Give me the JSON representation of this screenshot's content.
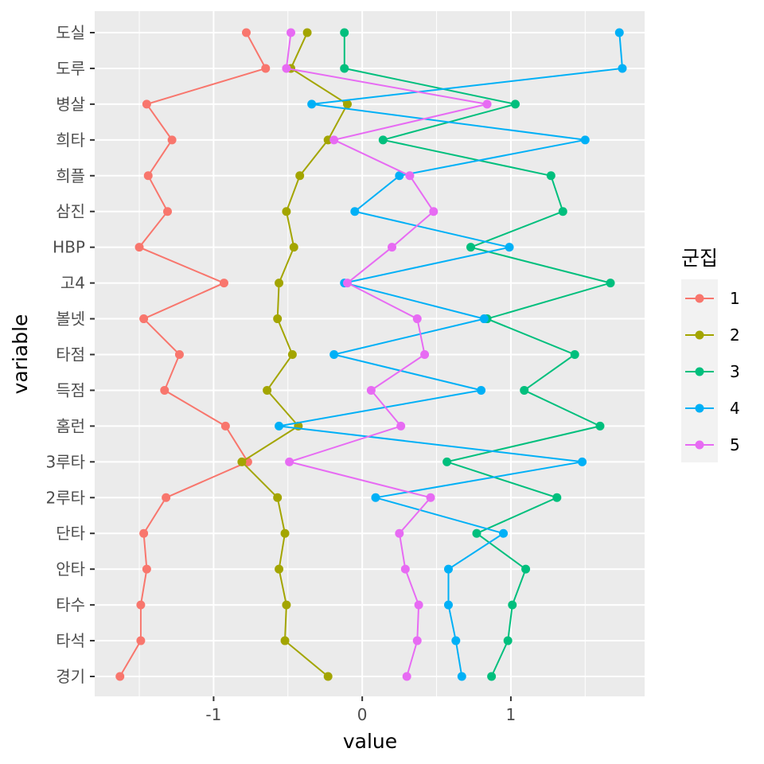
{
  "chart_data": {
    "type": "line",
    "xlabel": "value",
    "ylabel": "variable",
    "xlim": [
      -1.8,
      1.9
    ],
    "x_ticks": [
      -1,
      0,
      1
    ],
    "x_tick_labels": [
      "-1",
      "0",
      "1"
    ],
    "grid": true,
    "legend_position": "right",
    "legend_title": "군집",
    "categories": [
      "경기",
      "타석",
      "타수",
      "안타",
      "단타",
      "2루타",
      "3루타",
      "홈런",
      "득점",
      "타점",
      "볼넷",
      "고4",
      "HBP",
      "삼진",
      "희플",
      "희타",
      "병살",
      "도루",
      "도실"
    ],
    "series": [
      {
        "name": "1",
        "color": "#F8766D",
        "values": [
          -1.63,
          -1.49,
          -1.49,
          -1.45,
          -1.47,
          -1.32,
          -0.77,
          -0.92,
          -1.33,
          -1.23,
          -1.47,
          -0.93,
          -1.5,
          -1.31,
          -1.44,
          -1.28,
          -1.45,
          -0.65,
          -0.78
        ]
      },
      {
        "name": "2",
        "color": "#A3A500",
        "values": [
          -0.23,
          -0.52,
          -0.51,
          -0.56,
          -0.52,
          -0.57,
          -0.81,
          -0.43,
          -0.64,
          -0.47,
          -0.57,
          -0.56,
          -0.46,
          -0.51,
          -0.42,
          -0.23,
          -0.1,
          -0.48,
          -0.37
        ]
      },
      {
        "name": "3",
        "color": "#00BF7D",
        "values": [
          0.87,
          0.98,
          1.01,
          1.1,
          0.77,
          1.31,
          0.57,
          1.6,
          1.09,
          1.43,
          0.84,
          1.67,
          0.73,
          1.35,
          1.27,
          0.14,
          1.03,
          -0.12,
          -0.12
        ]
      },
      {
        "name": "4",
        "color": "#00B0F6",
        "values": [
          0.67,
          0.63,
          0.58,
          0.58,
          0.95,
          0.09,
          1.48,
          -0.56,
          0.8,
          -0.19,
          0.82,
          -0.12,
          0.99,
          -0.05,
          0.25,
          1.5,
          -0.34,
          1.75,
          1.73
        ]
      },
      {
        "name": "5",
        "color": "#E76BF3",
        "values": [
          0.3,
          0.37,
          0.38,
          0.29,
          0.25,
          0.46,
          -0.49,
          0.26,
          0.06,
          0.42,
          0.37,
          -0.1,
          0.2,
          0.48,
          0.32,
          -0.19,
          0.84,
          -0.51,
          -0.48
        ]
      }
    ]
  }
}
